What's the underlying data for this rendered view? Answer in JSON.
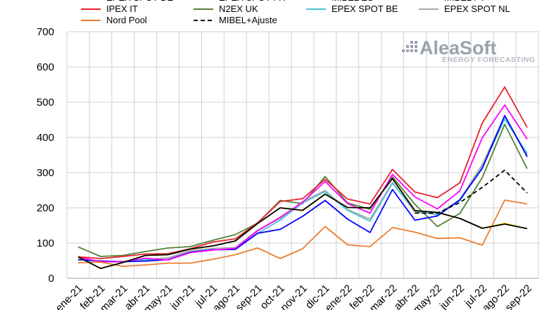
{
  "chart_data": {
    "type": "line",
    "categories": [
      "ene-21",
      "feb-21",
      "mar-21",
      "abr-21",
      "may-21",
      "jun-21",
      "jul-21",
      "ago-21",
      "sep-21",
      "oct-21",
      "nov-21",
      "dic-21",
      "ene-22",
      "feb-22",
      "mar-22",
      "abr-22",
      "may-22",
      "jun-22",
      "jul-22",
      "ago-22",
      "sep-22"
    ],
    "ylim": [
      0,
      700
    ],
    "yticks": [
      0,
      100,
      200,
      300,
      400,
      500,
      600,
      700
    ],
    "legend_partial_labels": [
      "EPEX SPOT DE",
      "EPEX SPOT FR",
      "MIBEL ES",
      "MIBEL PT"
    ],
    "series": [
      {
        "name": "EPEX SPOT DE",
        "color": "#0000ff",
        "dash": "",
        "shown_in_legend": false,
        "values": [
          53,
          49,
          47,
          49,
          53,
          74,
          81,
          82,
          128,
          139,
          176,
          221,
          168,
          130,
          252,
          165,
          177,
          223,
          312,
          462,
          345
        ]
      },
      {
        "name": "EPEX SPOT FR",
        "color": "#ff00ff",
        "dash": "",
        "shown_in_legend": false,
        "values": [
          60,
          47,
          47,
          57,
          52,
          73,
          80,
          85,
          135,
          173,
          216,
          275,
          212,
          185,
          295,
          231,
          197,
          248,
          399,
          492,
          395
        ]
      },
      {
        "name": "MIBEL ES",
        "color": "#000000",
        "dash": "",
        "shown_in_legend": false,
        "values": [
          61,
          28,
          45,
          65,
          67,
          83,
          92,
          106,
          156,
          200,
          193,
          239,
          201,
          200,
          283,
          192,
          187,
          170,
          142,
          154,
          141
        ]
      },
      {
        "name": "MIBEL PT",
        "color": "#ffd700",
        "dash": "",
        "shown_in_legend": false,
        "values": [
          60,
          28,
          45,
          65,
          67,
          83,
          92,
          106,
          156,
          200,
          192,
          239,
          201,
          200,
          283,
          192,
          187,
          170,
          142,
          156,
          141
        ]
      },
      {
        "name": "IPEX IT",
        "color": "#e8212e",
        "dash": "",
        "shown_in_legend": true,
        "values": [
          61,
          56,
          62,
          69,
          70,
          84,
          103,
          112,
          158,
          218,
          226,
          281,
          225,
          211,
          309,
          245,
          229,
          271,
          441,
          543,
          428
        ]
      },
      {
        "name": "N2EX UK",
        "color": "#538135",
        "dash": "",
        "shown_in_legend": true,
        "values": [
          89,
          62,
          65,
          76,
          86,
          90,
          108,
          124,
          157,
          221,
          212,
          289,
          214,
          196,
          288,
          210,
          147,
          184,
          286,
          437,
          311
        ]
      },
      {
        "name": "EPEX SPOT BE",
        "color": "#4dc3d8",
        "dash": "",
        "shown_in_legend": true,
        "values": [
          52,
          49,
          47,
          53,
          53,
          75,
          81,
          82,
          128,
          165,
          214,
          246,
          193,
          162,
          270,
          192,
          180,
          220,
          315,
          452,
          355
        ]
      },
      {
        "name": "EPEX SPOT NL",
        "color": "#a6a6a6",
        "dash": "",
        "shown_in_legend": true,
        "values": [
          53,
          48,
          48,
          53,
          58,
          78,
          85,
          87,
          137,
          170,
          218,
          249,
          195,
          168,
          272,
          188,
          182,
          222,
          323,
          460,
          350
        ]
      },
      {
        "name": "Nord Pool",
        "color": "#ed7d31",
        "dash": "",
        "shown_in_legend": true,
        "values": [
          44,
          46,
          34,
          38,
          43,
          43,
          54,
          67,
          86,
          56,
          84,
          147,
          95,
          90,
          144,
          131,
          113,
          115,
          94,
          222,
          211
        ]
      },
      {
        "name": "MIBEL+Ajuste",
        "color": "#000000",
        "dash": "6,4",
        "shown_in_legend": true,
        "values": [
          null,
          null,
          null,
          null,
          null,
          null,
          null,
          null,
          null,
          null,
          null,
          null,
          null,
          null,
          null,
          185,
          185,
          215,
          258,
          307,
          242
        ]
      }
    ],
    "draw_order": [
      "N2EX UK",
      "EPEX SPOT NL",
      "EPEX SPOT BE",
      "EPEX SPOT DE",
      "EPEX SPOT FR",
      "IPEX IT",
      "Nord Pool",
      "MIBEL PT",
      "MIBEL ES",
      "MIBEL+Ajuste"
    ]
  },
  "watermark": {
    "brand": "AleaSoft",
    "tagline": "ENERGY FORECASTING"
  }
}
